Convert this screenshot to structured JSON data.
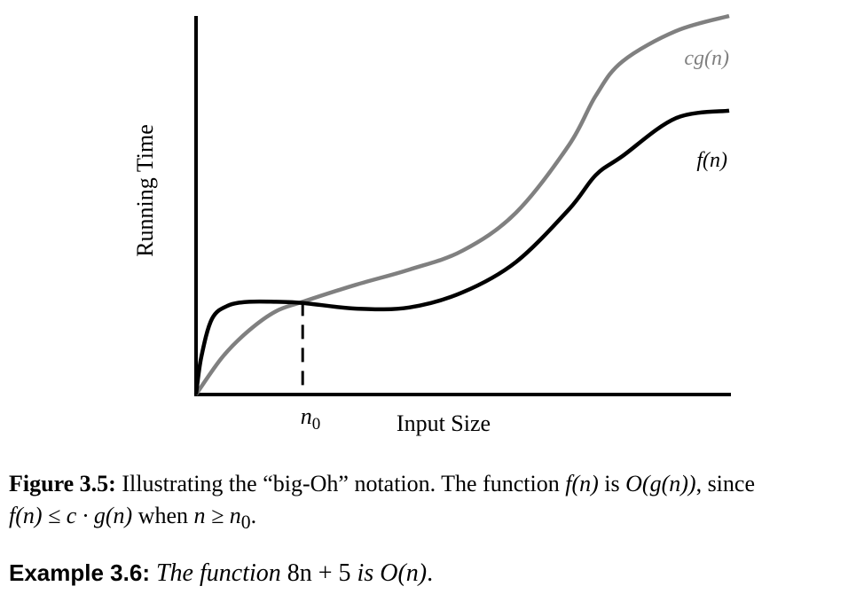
{
  "chart_data": {
    "type": "line",
    "xlabel": "Input Size",
    "ylabel": "Running Time",
    "tick_labels": [
      "n0"
    ],
    "series": [
      {
        "name": "cg(n)",
        "color": "#808080",
        "points": [
          [
            0,
            0
          ],
          [
            0.05,
            0.1
          ],
          [
            0.1,
            0.17
          ],
          [
            0.15,
            0.22
          ],
          [
            0.2,
            0.245
          ],
          [
            0.3,
            0.29
          ],
          [
            0.4,
            0.33
          ],
          [
            0.5,
            0.38
          ],
          [
            0.6,
            0.48
          ],
          [
            0.7,
            0.66
          ],
          [
            0.75,
            0.79
          ],
          [
            0.8,
            0.88
          ],
          [
            0.9,
            0.96
          ],
          [
            1.0,
            1.0
          ]
        ]
      },
      {
        "name": "f(n)",
        "color": "#000000",
        "points": [
          [
            0,
            0
          ],
          [
            0.01,
            0.1
          ],
          [
            0.03,
            0.2
          ],
          [
            0.06,
            0.235
          ],
          [
            0.1,
            0.245
          ],
          [
            0.15,
            0.245
          ],
          [
            0.2,
            0.242
          ],
          [
            0.3,
            0.227
          ],
          [
            0.4,
            0.23
          ],
          [
            0.5,
            0.27
          ],
          [
            0.6,
            0.35
          ],
          [
            0.7,
            0.49
          ],
          [
            0.75,
            0.58
          ],
          [
            0.8,
            0.63
          ],
          [
            0.9,
            0.73
          ],
          [
            1.0,
            0.75
          ]
        ]
      }
    ],
    "marker": {
      "label": "n0",
      "x": 0.2,
      "style": "dashed"
    },
    "xlim": [
      0,
      1
    ],
    "ylim": [
      0,
      1
    ],
    "grid": false
  },
  "caption": {
    "label": "Figure 3.5:",
    "line1_text": "Illustrating the “big-Oh” notation. The function ",
    "f_n": "f(n)",
    "is": " is ",
    "o_g_n": "O(g(n))",
    "since": ", since",
    "line2_f": "f(n) ≤ c · g(n)",
    "when": " when ",
    "cond": "n ≥ n",
    "sub0": "0",
    "period": "."
  },
  "example": {
    "label": "Example 3.6:",
    "text_pre": " The function ",
    "expr": "8n + 5",
    "text_mid": " is ",
    "result": "O(n)",
    "period": "."
  }
}
